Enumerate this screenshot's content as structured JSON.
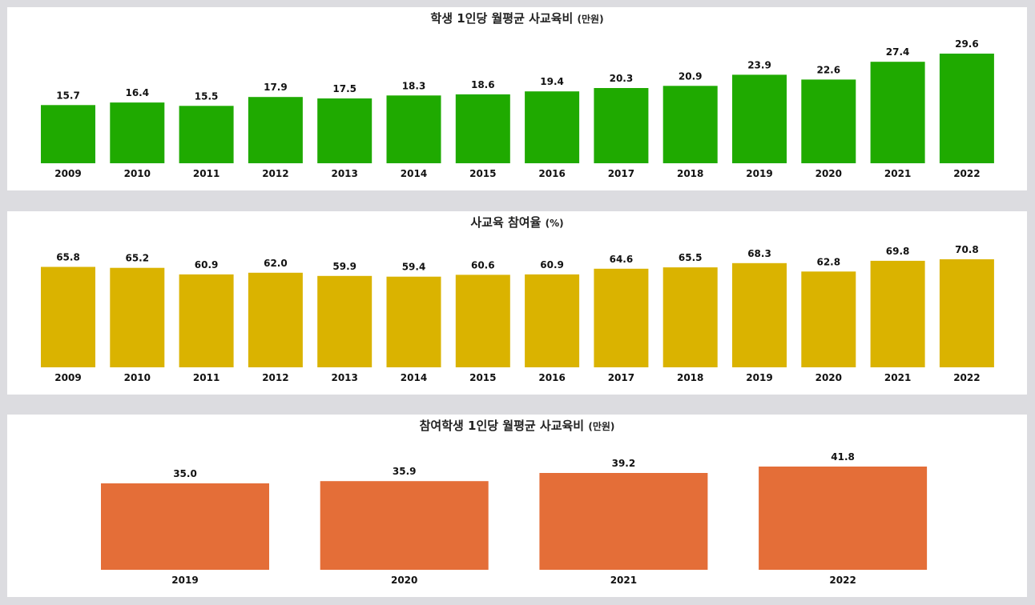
{
  "chart_data": [
    {
      "type": "bar",
      "title": "학생 1인당 월평균 사교육비",
      "title_unit": "(만원)",
      "color": "#1faa00",
      "categories": [
        "2009",
        "2010",
        "2011",
        "2012",
        "2013",
        "2014",
        "2015",
        "2016",
        "2017",
        "2018",
        "2019",
        "2020",
        "2021",
        "2022"
      ],
      "values": [
        15.7,
        16.4,
        15.5,
        17.9,
        17.5,
        18.3,
        18.6,
        19.4,
        20.3,
        20.9,
        23.9,
        22.6,
        27.4,
        29.6
      ],
      "value_format": "1 decimal",
      "ylim": [
        0,
        29.6
      ],
      "grid": false
    },
    {
      "type": "bar",
      "title": "사교육 참여율",
      "title_unit": "(%)",
      "color": "#dab300",
      "categories": [
        "2009",
        "2010",
        "2011",
        "2012",
        "2013",
        "2014",
        "2015",
        "2016",
        "2017",
        "2018",
        "2019",
        "2020",
        "2021",
        "2022"
      ],
      "values": [
        65.8,
        65.2,
        60.9,
        62.0,
        59.9,
        59.4,
        60.6,
        60.9,
        64.6,
        65.5,
        68.3,
        62.8,
        69.8,
        70.8
      ],
      "value_format": "1 decimal",
      "ylim": [
        0,
        70.8
      ],
      "grid": false
    },
    {
      "type": "bar",
      "title": "참여학생 1인당 월평균 사교육비",
      "title_unit": "(만원)",
      "color": "#e46e38",
      "categories": [
        "2019",
        "2020",
        "2021",
        "2022"
      ],
      "values": [
        35.0,
        35.9,
        39.2,
        41.8
      ],
      "value_format": "1 decimal",
      "ylim": [
        0,
        41.8
      ],
      "grid": false
    }
  ]
}
